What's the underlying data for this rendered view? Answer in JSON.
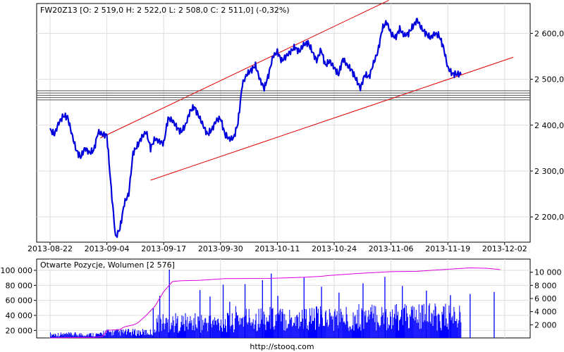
{
  "footer": {
    "source": "http://stooq.com"
  },
  "chart_data": [
    {
      "type": "line",
      "title": "FW20Z13 [O: 2 519,0  H: 2 522,0  L: 2 508,0  C: 2 511,0] (-0,32%)",
      "x_tick_labels": [
        "2013-08-22",
        "2013-09-04",
        "2013-09-17",
        "2013-09-30",
        "2013-10-11",
        "2013-10-24",
        "2013-11-06",
        "2013-11-19",
        "2013-12-02"
      ],
      "y_tick_values": [
        2200,
        2300,
        2400,
        2500,
        2600
      ],
      "y_tick_labels": [
        "2 200,0",
        "2 300,0",
        "2 400,0",
        "2 500,0",
        "2 600,0"
      ],
      "ylim": [
        2145,
        2665
      ],
      "x_range_days": [
        0,
        106
      ],
      "grid": true,
      "axis_side": "right",
      "colors": {
        "price": "#0000dd",
        "channel": "#dd0000",
        "levels": "#555555",
        "grid": "#dddddd"
      },
      "series": [
        {
          "x": [
            0,
            1,
            2,
            3,
            4,
            5,
            6,
            7,
            8,
            9,
            10,
            11,
            12,
            13,
            14,
            15,
            16,
            17,
            18,
            19,
            20,
            21,
            22,
            23,
            24,
            25,
            26,
            27,
            28,
            29,
            30,
            31,
            32,
            33,
            34,
            35,
            36,
            37,
            38,
            39,
            40,
            41,
            42,
            43,
            44,
            45,
            46,
            47,
            48,
            49,
            50,
            51,
            52,
            53,
            54,
            55,
            56,
            57,
            58,
            59,
            60,
            61,
            62,
            63,
            64,
            65,
            66,
            67,
            68,
            69,
            70,
            71,
            72,
            73,
            74,
            75,
            76,
            77,
            78,
            79,
            80,
            81,
            82,
            83,
            84,
            85,
            86,
            87,
            88,
            89,
            90,
            91,
            92,
            93,
            94,
            95,
            96,
            97,
            98,
            99,
            100,
            101,
            102,
            103
          ],
          "values": [
            2390,
            2380,
            2405,
            2420,
            2418,
            2380,
            2345,
            2330,
            2350,
            2340,
            2345,
            2385,
            2380,
            2378,
            2260,
            2155,
            2175,
            2230,
            2250,
            2340,
            2355,
            2375,
            2385,
            2350,
            2370,
            2365,
            2360,
            2415,
            2410,
            2395,
            2385,
            2400,
            2430,
            2440,
            2420,
            2400,
            2380,
            2390,
            2410,
            2415,
            2380,
            2370,
            2372,
            2405,
            2490,
            2510,
            2520,
            2530,
            2500,
            2480,
            2510,
            2550,
            2560,
            2540,
            2550,
            2560,
            2570,
            2560,
            2575,
            2580,
            2560,
            2540,
            2565,
            2530,
            2540,
            2525,
            2510,
            2545,
            2530,
            2520,
            2500,
            2480,
            2510,
            2505,
            2535,
            2560,
            2610,
            2625,
            2600,
            2590,
            2610,
            2595,
            2600,
            2615,
            2630,
            2610,
            2600,
            2590,
            2600,
            2595,
            2570,
            2525,
            2512,
            2511,
            2511,
            2511,
            2511,
            2511,
            2511,
            2511,
            2511,
            2511,
            2511,
            2511
          ]
        }
      ],
      "horizontal_levels": [
        2455,
        2460,
        2465,
        2470,
        2475
      ],
      "trend_channel": [
        {
          "x": [
            11.5,
            77.5
          ],
          "values": [
            2372,
            2672
          ]
        },
        {
          "x": [
            23,
            106
          ],
          "values": [
            2280,
            2548
          ]
        }
      ]
    },
    {
      "type": "bar",
      "title": "Otwarte Pozycje, Wolumen [2 576]",
      "left_axis": {
        "name": "Otwarte Pozycje",
        "ylim": [
          10000,
          115000
        ],
        "tick_values": [
          20000,
          40000,
          60000,
          80000,
          100000
        ],
        "tick_labels": [
          "20 000",
          "40 000",
          "60 000",
          "80 000",
          "100 000"
        ]
      },
      "right_axis": {
        "name": "Wolumen",
        "ylim": [
          0,
          12000
        ],
        "tick_values": [
          2000,
          4000,
          6000,
          8000,
          10000
        ],
        "tick_labels": [
          "2 000",
          "4 000",
          "6 000",
          "8 000",
          "10 000"
        ]
      },
      "colors": {
        "open_interest": "#dd00dd",
        "volume": "#0000ff"
      },
      "open_interest": {
        "x": [
          0,
          10,
          12,
          13,
          16,
          17,
          18,
          19,
          20,
          22,
          24,
          26,
          28,
          30,
          34,
          40,
          50,
          58,
          62,
          64,
          70,
          74,
          78,
          84,
          90,
          96,
          100,
          103
        ],
        "values": [
          10000,
          10500,
          12000,
          20000,
          21000,
          25000,
          26000,
          27000,
          30000,
          40000,
          52000,
          72000,
          85000,
          86000,
          87000,
          89000,
          89000,
          91000,
          92000,
          93000,
          96000,
          97000,
          98000,
          99000,
          101000,
          103000,
          103000,
          101000
        ]
      },
      "volume_by_segment": [
        {
          "x_range": [
            0,
            12
          ],
          "level": 500
        },
        {
          "x_range": [
            12,
            24
          ],
          "level": 800
        },
        {
          "x_range": [
            24,
            42
          ],
          "level": 2200
        },
        {
          "x_range": [
            42,
            70
          ],
          "level": 2800
        },
        {
          "x_range": [
            70,
            104
          ],
          "level": 3000
        }
      ],
      "volume_spikes": [
        {
          "x": 27.2,
          "value": 10800
        },
        {
          "x": 23.5,
          "value": 4500
        },
        {
          "x": 25.0,
          "value": 6400
        },
        {
          "x": 34.2,
          "value": 7300
        },
        {
          "x": 36.5,
          "value": 6300
        },
        {
          "x": 39.5,
          "value": 8100
        },
        {
          "x": 41.0,
          "value": 5500
        },
        {
          "x": 44.5,
          "value": 8200
        },
        {
          "x": 48.5,
          "value": 8800
        },
        {
          "x": 50.5,
          "value": 9800
        },
        {
          "x": 52.0,
          "value": 6400
        },
        {
          "x": 58.0,
          "value": 9200
        },
        {
          "x": 62.0,
          "value": 7800
        },
        {
          "x": 66.0,
          "value": 6900
        },
        {
          "x": 71.5,
          "value": 8300
        },
        {
          "x": 76.5,
          "value": 9300
        },
        {
          "x": 80.5,
          "value": 7900
        },
        {
          "x": 86.0,
          "value": 7200
        },
        {
          "x": 91.5,
          "value": 6500
        },
        {
          "x": 96.0,
          "value": 6700
        },
        {
          "x": 101.5,
          "value": 7000
        }
      ],
      "volume_last": 2576
    }
  ]
}
